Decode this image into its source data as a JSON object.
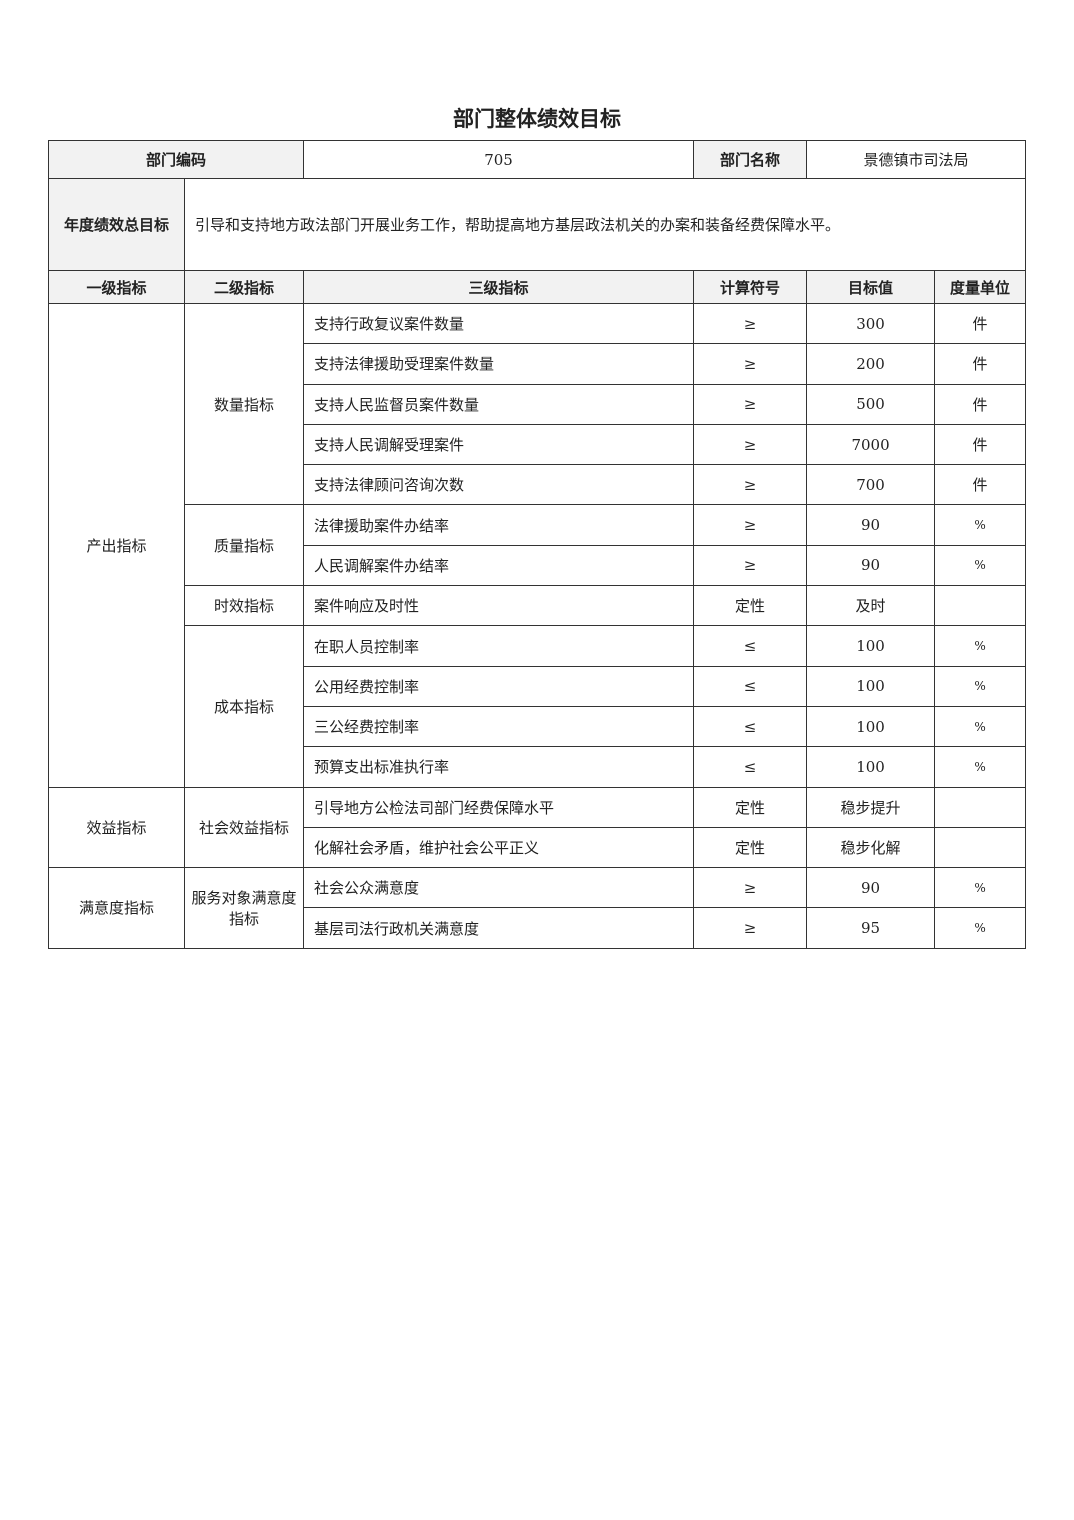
{
  "title": "部门整体绩效目标",
  "dept": {
    "code_label": "部门编码",
    "code": "705",
    "name_label": "部门名称",
    "name": "景德镇市司法局"
  },
  "goal": {
    "label": "年度绩效总目标",
    "text": "引导和支持地方政法部门开展业务工作，帮助提高地方基层政法机关的办案和装备经费保障水平。"
  },
  "headers": [
    "一级指标",
    "二级指标",
    "三级指标",
    "计算符号",
    "目标值",
    "度量单位"
  ],
  "groups": [
    {
      "level1": "产出指标",
      "subs": [
        {
          "level2": "数量指标",
          "rows": [
            [
              "支持行政复议案件数量",
              "≥",
              "300",
              "件"
            ],
            [
              "支持法律援助受理案件数量",
              "≥",
              "200",
              "件"
            ],
            [
              "支持人民监督员案件数量",
              "≥",
              "500",
              "件"
            ],
            [
              "支持人民调解受理案件",
              "≥",
              "7000",
              "件"
            ],
            [
              "支持法律顾问咨询次数",
              "≥",
              "700",
              "件"
            ]
          ]
        },
        {
          "level2": "质量指标",
          "rows": [
            [
              "法律援助案件办结率",
              "≥",
              "90",
              "%"
            ],
            [
              "人民调解案件办结率",
              "≥",
              "90",
              "%"
            ]
          ]
        },
        {
          "level2": "时效指标",
          "rows": [
            [
              "案件响应及时性",
              "定性",
              "及时",
              ""
            ]
          ]
        },
        {
          "level2": "成本指标",
          "rows": [
            [
              "在职人员控制率",
              "≤",
              "100",
              "%"
            ],
            [
              "公用经费控制率",
              "≤",
              "100",
              "%"
            ],
            [
              "三公经费控制率",
              "≤",
              "100",
              "%"
            ],
            [
              "预算支出标准执行率",
              "≤",
              "100",
              "%"
            ]
          ]
        }
      ]
    },
    {
      "level1": "效益指标",
      "subs": [
        {
          "level2": "社会效益指标",
          "rows": [
            [
              "引导地方公检法司部门经费保障水平",
              "定性",
              "稳步提升",
              ""
            ],
            [
              "化解社会矛盾，维护社会公平正义",
              "定性",
              "稳步化解",
              ""
            ]
          ]
        }
      ]
    },
    {
      "level1": "满意度指标",
      "subs": [
        {
          "level2": "服务对象满意度指标",
          "rows": [
            [
              "社会公众满意度",
              "≥",
              "90",
              "%"
            ],
            [
              "基层司法行政机关满意度",
              "≥",
              "95",
              "%"
            ]
          ]
        }
      ]
    }
  ]
}
